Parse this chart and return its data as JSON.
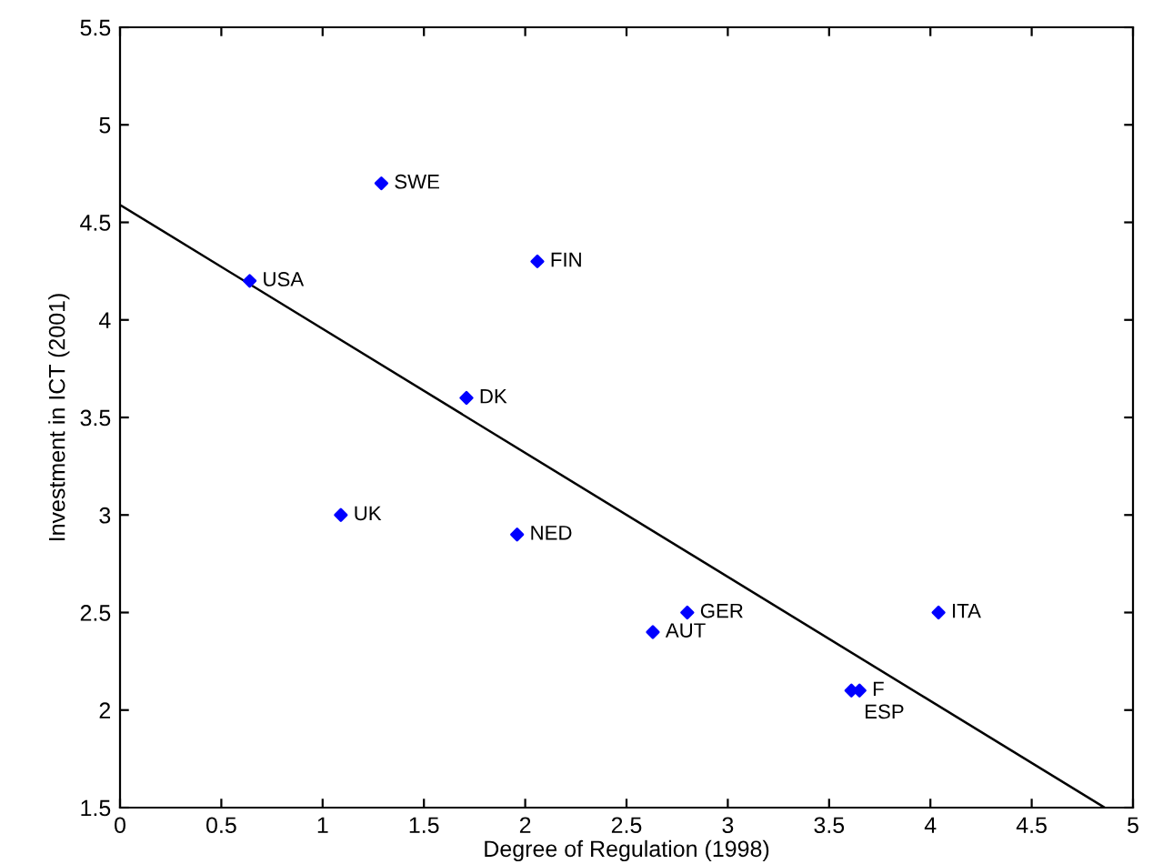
{
  "chart_data": {
    "type": "scatter",
    "xlabel": "Degree of Regulation (1998)",
    "ylabel": "Investment in ICT (2001)",
    "series": [
      {
        "color": "#0000ff",
        "marker": "diamond",
        "x": [
          1.29,
          0.64,
          2.06,
          1.71,
          1.09,
          1.96,
          2.8,
          2.63,
          3.65,
          3.61,
          4.04
        ],
        "values": [
          4.7,
          4.2,
          4.3,
          3.6,
          3.0,
          2.9,
          2.5,
          2.4,
          2.1,
          2.1,
          2.5
        ]
      },
      {
        "type": "line",
        "color": "#000000",
        "marker": "none",
        "x": [
          0,
          4.86
        ],
        "values": [
          4.59,
          1.5
        ]
      }
    ],
    "annotations": [
      {
        "text": "SWE",
        "x": 1.29,
        "y": 4.7
      },
      {
        "text": "USA",
        "x": 0.64,
        "y": 4.2
      },
      {
        "text": "FIN",
        "x": 2.06,
        "y": 4.3
      },
      {
        "text": "DK",
        "x": 1.71,
        "y": 3.6
      },
      {
        "text": "UK",
        "x": 1.09,
        "y": 3.0
      },
      {
        "text": "NED",
        "x": 1.96,
        "y": 2.9
      },
      {
        "text": "GER",
        "x": 2.8,
        "y": 2.5
      },
      {
        "text": "AUT",
        "x": 2.63,
        "y": 2.4
      },
      {
        "text": "F",
        "x": 3.65,
        "y": 2.1
      },
      {
        "text": "ESP",
        "x": 3.61,
        "y": 2.1
      },
      {
        "text": "ITA",
        "x": 4.04,
        "y": 2.5
      }
    ],
    "xlim": [
      0,
      5
    ],
    "ylim": [
      1.5,
      5.5
    ],
    "xticks": [
      0,
      0.5,
      1,
      1.5,
      2,
      2.5,
      3,
      3.5,
      4,
      4.5,
      5
    ],
    "yticks": [
      1.5,
      2,
      2.5,
      3,
      3.5,
      4,
      4.5,
      5,
      5.5
    ],
    "grid": false,
    "legend": false
  }
}
